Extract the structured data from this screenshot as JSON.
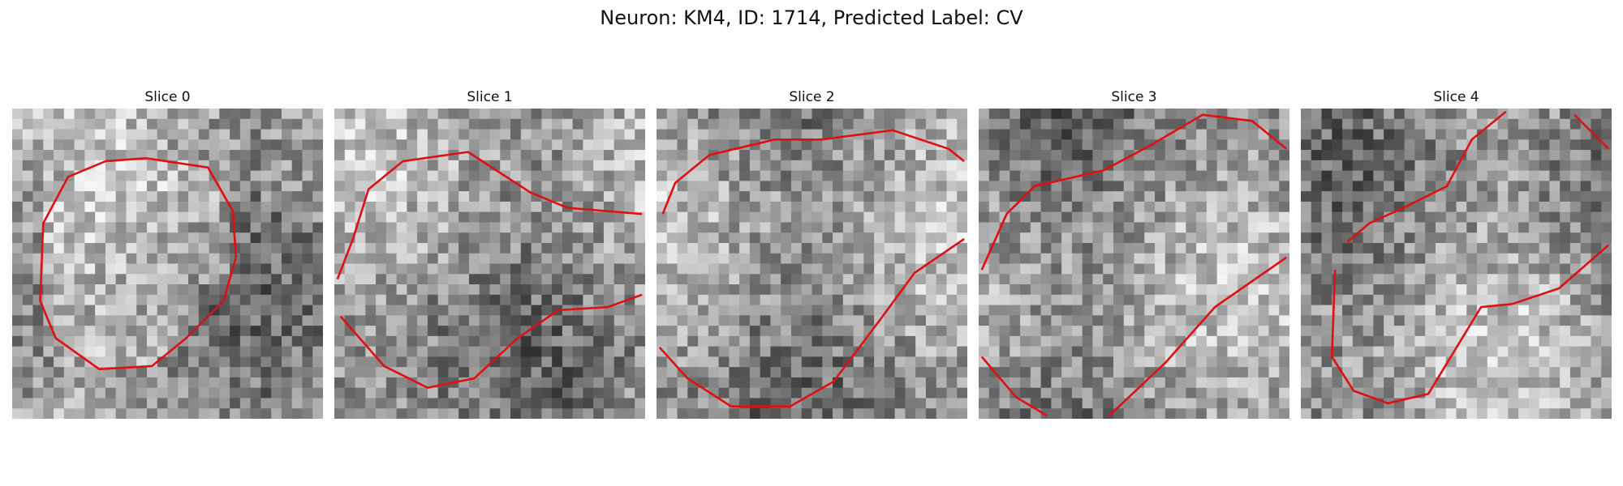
{
  "figure": {
    "title": "Neuron: KM4, ID: 1714, Predicted Label: CV",
    "contour_color": "#e01010"
  },
  "slices": [
    {
      "title": "Slice 0",
      "contour": [
        [
          0.43,
          0.16
        ],
        [
          0.63,
          0.19
        ],
        [
          0.71,
          0.33
        ],
        [
          0.72,
          0.48
        ],
        [
          0.68,
          0.62
        ],
        [
          0.56,
          0.74
        ],
        [
          0.45,
          0.83
        ],
        [
          0.28,
          0.84
        ],
        [
          0.14,
          0.74
        ],
        [
          0.09,
          0.62
        ],
        [
          0.1,
          0.37
        ],
        [
          0.18,
          0.22
        ],
        [
          0.3,
          0.17
        ],
        [
          0.43,
          0.16
        ]
      ],
      "closed": true
    },
    {
      "title": "Slice 1",
      "contour": [
        [
          0.01,
          0.55
        ],
        [
          0.06,
          0.42
        ],
        [
          0.11,
          0.26
        ],
        [
          0.22,
          0.17
        ],
        [
          0.43,
          0.14
        ],
        [
          0.63,
          0.27
        ],
        [
          0.75,
          0.32
        ],
        [
          0.99,
          0.34
        ]
      ],
      "contour2": [
        [
          0.02,
          0.67
        ],
        [
          0.16,
          0.83
        ],
        [
          0.3,
          0.9
        ],
        [
          0.45,
          0.87
        ],
        [
          0.59,
          0.74
        ],
        [
          0.72,
          0.65
        ],
        [
          0.88,
          0.64
        ],
        [
          0.99,
          0.6
        ]
      ],
      "closed": false
    },
    {
      "title": "Slice 2",
      "contour": [
        [
          0.02,
          0.34
        ],
        [
          0.06,
          0.24
        ],
        [
          0.17,
          0.15
        ],
        [
          0.38,
          0.1
        ],
        [
          0.53,
          0.1
        ],
        [
          0.76,
          0.07
        ],
        [
          0.94,
          0.13
        ],
        [
          0.99,
          0.17
        ]
      ],
      "contour2": [
        [
          0.01,
          0.77
        ],
        [
          0.1,
          0.87
        ],
        [
          0.24,
          0.96
        ],
        [
          0.43,
          0.96
        ],
        [
          0.57,
          0.88
        ],
        [
          0.72,
          0.68
        ],
        [
          0.83,
          0.53
        ],
        [
          0.99,
          0.42
        ]
      ],
      "closed": false
    },
    {
      "title": "Slice 3",
      "contour": [
        [
          0.01,
          0.52
        ],
        [
          0.09,
          0.34
        ],
        [
          0.18,
          0.25
        ],
        [
          0.4,
          0.2
        ],
        [
          0.55,
          0.12
        ],
        [
          0.72,
          0.02
        ],
        [
          0.88,
          0.04
        ],
        [
          0.99,
          0.13
        ]
      ],
      "contour2": [
        [
          0.01,
          0.8
        ],
        [
          0.12,
          0.93
        ],
        [
          0.22,
          0.99
        ]
      ],
      "contour3": [
        [
          0.42,
          0.99
        ],
        [
          0.6,
          0.82
        ],
        [
          0.76,
          0.64
        ],
        [
          0.99,
          0.48
        ]
      ],
      "closed": false
    },
    {
      "title": "Slice 4",
      "contour": [
        [
          0.15,
          0.43
        ],
        [
          0.22,
          0.37
        ],
        [
          0.33,
          0.32
        ],
        [
          0.47,
          0.25
        ],
        [
          0.55,
          0.1
        ],
        [
          0.66,
          0.01
        ]
      ],
      "contour2": [
        [
          0.88,
          0.02
        ],
        [
          0.99,
          0.13
        ]
      ],
      "contour3": [
        [
          0.11,
          0.52
        ],
        [
          0.1,
          0.8
        ],
        [
          0.17,
          0.91
        ],
        [
          0.28,
          0.95
        ],
        [
          0.41,
          0.92
        ],
        [
          0.58,
          0.64
        ],
        [
          0.58,
          0.64
        ],
        [
          0.68,
          0.63
        ],
        [
          0.83,
          0.58
        ],
        [
          0.99,
          0.44
        ]
      ],
      "closed": false
    }
  ]
}
